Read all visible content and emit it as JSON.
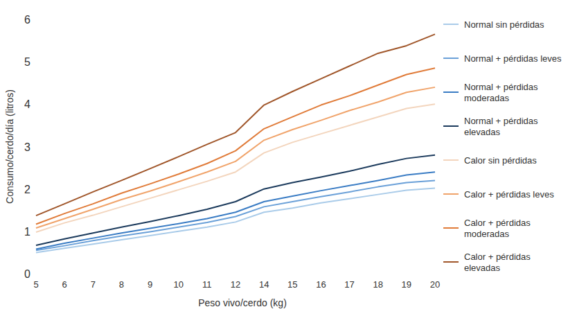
{
  "chart_data": {
    "type": "line",
    "x_label": "Peso vivo/cerdo (kg)",
    "y_label": "Consumo/cerdo/día (litros)",
    "categories": [
      "5",
      "6",
      "7",
      "8",
      "9",
      "10",
      "11",
      "12",
      "14",
      "15",
      "16",
      "17",
      "18",
      "19",
      "20"
    ],
    "ylim": [
      0,
      6
    ],
    "yticks": [
      0,
      1,
      2,
      3,
      4,
      5,
      6
    ],
    "grid": false,
    "legend": "right",
    "series": [
      {
        "name": "Normal sin pérdidas",
        "color": "#a9cbe9",
        "values": [
          0.5,
          0.6,
          0.7,
          0.8,
          0.9,
          1.0,
          1.1,
          1.22,
          1.45,
          1.55,
          1.67,
          1.77,
          1.87,
          1.97,
          2.02
        ]
      },
      {
        "name": "Normal + pérdidas leves",
        "color": "#6aa0d8",
        "values": [
          0.55,
          0.66,
          0.78,
          0.89,
          0.99,
          1.1,
          1.21,
          1.35,
          1.58,
          1.7,
          1.82,
          1.93,
          2.05,
          2.15,
          2.2
        ]
      },
      {
        "name": "Normal + pérdidas moderadas",
        "color": "#3a7cc4",
        "values": [
          0.58,
          0.72,
          0.84,
          0.96,
          1.07,
          1.18,
          1.3,
          1.45,
          1.7,
          1.83,
          1.96,
          2.08,
          2.2,
          2.33,
          2.4
        ]
      },
      {
        "name": "Normal + pérdidas elevadas",
        "color": "#1b3a5c",
        "values": [
          0.67,
          0.82,
          0.96,
          1.1,
          1.23,
          1.37,
          1.52,
          1.7,
          2.0,
          2.15,
          2.28,
          2.42,
          2.58,
          2.72,
          2.8
        ]
      },
      {
        "name": "Calor sin pérdidas",
        "color": "#f3d5bd",
        "values": [
          0.98,
          1.2,
          1.38,
          1.58,
          1.78,
          1.98,
          2.18,
          2.4,
          2.85,
          3.1,
          3.3,
          3.5,
          3.7,
          3.9,
          4.0
        ]
      },
      {
        "name": "Calor + pérdidas leves",
        "color": "#f0a36a",
        "values": [
          1.08,
          1.3,
          1.52,
          1.75,
          1.95,
          2.17,
          2.4,
          2.65,
          3.15,
          3.4,
          3.62,
          3.85,
          4.05,
          4.28,
          4.4
        ]
      },
      {
        "name": "Calor + pérdidas moderadas",
        "color": "#e07b39",
        "values": [
          1.17,
          1.42,
          1.65,
          1.9,
          2.12,
          2.35,
          2.6,
          2.9,
          3.42,
          3.7,
          3.98,
          4.2,
          4.45,
          4.7,
          4.85
        ]
      },
      {
        "name": "Calor + pérdidas elevadas",
        "color": "#a0562a",
        "values": [
          1.37,
          1.65,
          1.93,
          2.2,
          2.48,
          2.76,
          3.05,
          3.33,
          3.98,
          4.3,
          4.6,
          4.9,
          5.2,
          5.38,
          5.65
        ]
      }
    ]
  }
}
